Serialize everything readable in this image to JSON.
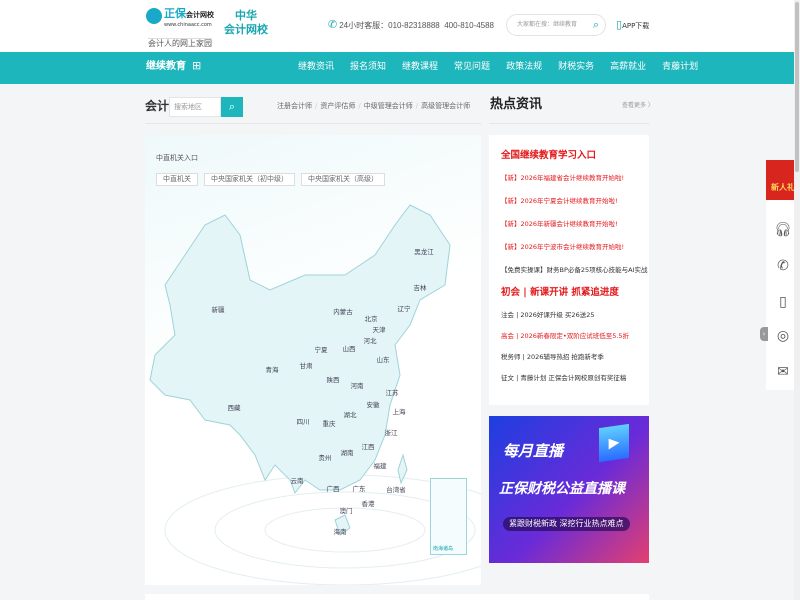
{
  "header": {
    "logo": {
      "brand": "正保",
      "sub": "会计网校",
      "url": "www.chinaacc.com",
      "slogan": "会计人的网上家园"
    },
    "partner": [
      "中华",
      "会计网校"
    ],
    "hotline_label": "24小时客服：",
    "phone1": "010-82318888",
    "phone2": "400-810-4588",
    "search_placeholder": "大家都在搜：继续教育",
    "app_label": "APP下载"
  },
  "nav": {
    "brand": "继续教育",
    "items": [
      "继教资讯",
      "报名须知",
      "继教课程",
      "常见问题",
      "政策法规",
      "财税实务",
      "高薪就业",
      "青藤计划"
    ]
  },
  "subbar": {
    "label": "会计",
    "search_placeholder": "搜索地区",
    "categories": [
      "注册会计师",
      "资产评估师",
      "中级管理会计师",
      "高级管理会计师"
    ]
  },
  "map": {
    "title": "中直机关入口",
    "tabs": [
      "中直机关",
      "中央国家机关（初中级）",
      "中央国家机关（高级）"
    ],
    "provinces": [
      "新疆",
      "西藏",
      "青海",
      "甘肃",
      "宁夏",
      "内蒙古",
      "北京",
      "天津",
      "河北",
      "山西",
      "山东",
      "陕西",
      "河南",
      "江苏",
      "安徽",
      "湖北",
      "上海",
      "四川",
      "重庆",
      "浙江",
      "江西",
      "湖南",
      "贵州",
      "福建",
      "云南",
      "广西",
      "广东",
      "台湾省",
      "香港",
      "澳门",
      "海南",
      "黑龙江",
      "吉林",
      "辽宁"
    ],
    "inset_label": "南海诸岛"
  },
  "hot": {
    "title": "热点资讯",
    "more": "查看更多 〉",
    "section1": {
      "heading": "全国继续教育学习入口",
      "items": [
        {
          "text": "【新】2026年福建省会计继续教育开始啦!",
          "color": "red"
        },
        {
          "text": "【新】2026年宁夏会计继续教育开始啦!",
          "color": "red"
        },
        {
          "text": "【新】2026年新疆会计继续教育开始啦!",
          "color": "red"
        },
        {
          "text": "【新】2026年宁波市会计继续教育开始啦!",
          "color": "red"
        },
        {
          "text": "【免费实操课】财务BP必备25项核心技能与AI实战",
          "color": "dark"
        }
      ]
    },
    "section2": {
      "heading": "初会 | 新课开讲 抓紧追进度",
      "items": [
        {
          "text": "注会 | 2026好课升级 买26送25",
          "color": "dark"
        },
        {
          "text": "高会 | 2026新春限定•双阶应试班低至5.5折",
          "color": "red"
        },
        {
          "text": "税务师 | 2026辅导热招 抢跑新考季",
          "color": "dark"
        },
        {
          "text": "征文 | 青藤计划 正保会计网校原创有奖征稿",
          "color": "dark"
        }
      ]
    }
  },
  "banner": {
    "line1": "每月直播",
    "line2": "正保财税公益直播课",
    "line3": "紧跟财税新政 深挖行业热点难点"
  },
  "side": {
    "gift": "新人礼",
    "icons": [
      "headset-icon",
      "phone-icon",
      "mobile-icon",
      "wechat-icon",
      "mail-icon"
    ]
  },
  "colors": {
    "accent": "#1db6bc",
    "red": "#e4191c"
  }
}
